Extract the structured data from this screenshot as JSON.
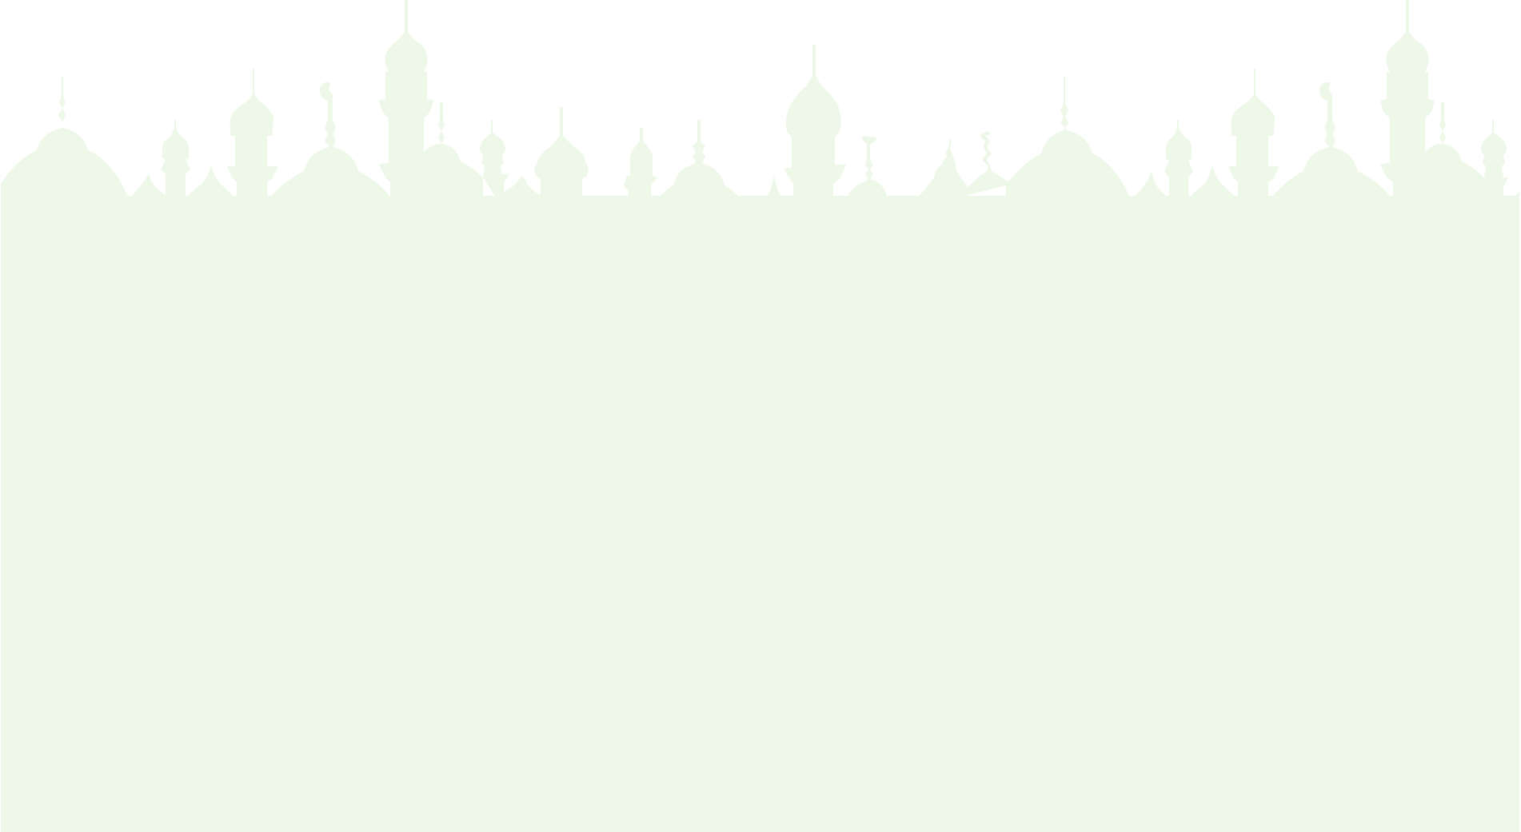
{
  "background": {
    "page_color": "#ffffff",
    "silhouette_color": "#eef8e8",
    "silhouette_icon": "mosque-skyline-icon"
  }
}
